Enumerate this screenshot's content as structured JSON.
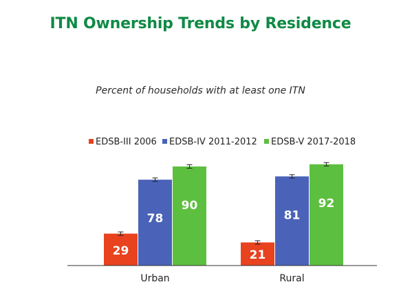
{
  "title": "ITN Ownership Trends by Residence",
  "subtitle": "Percent of households with at least one ITN",
  "chart_data": {
    "type": "bar",
    "categories": [
      "Urban",
      "Rural"
    ],
    "series": [
      {
        "name": "EDSB-III 2006",
        "color": "#e8421f",
        "values": [
          29,
          21
        ]
      },
      {
        "name": "EDSB-IV 2011-2012",
        "color": "#4a63b8",
        "values": [
          78,
          81
        ]
      },
      {
        "name": "EDSB-V 2017-2018",
        "color": "#5dbf3f",
        "values": [
          90,
          92
        ]
      }
    ],
    "ylim": [
      0,
      100
    ],
    "error_bars": true,
    "legend": "top",
    "grid": false
  }
}
